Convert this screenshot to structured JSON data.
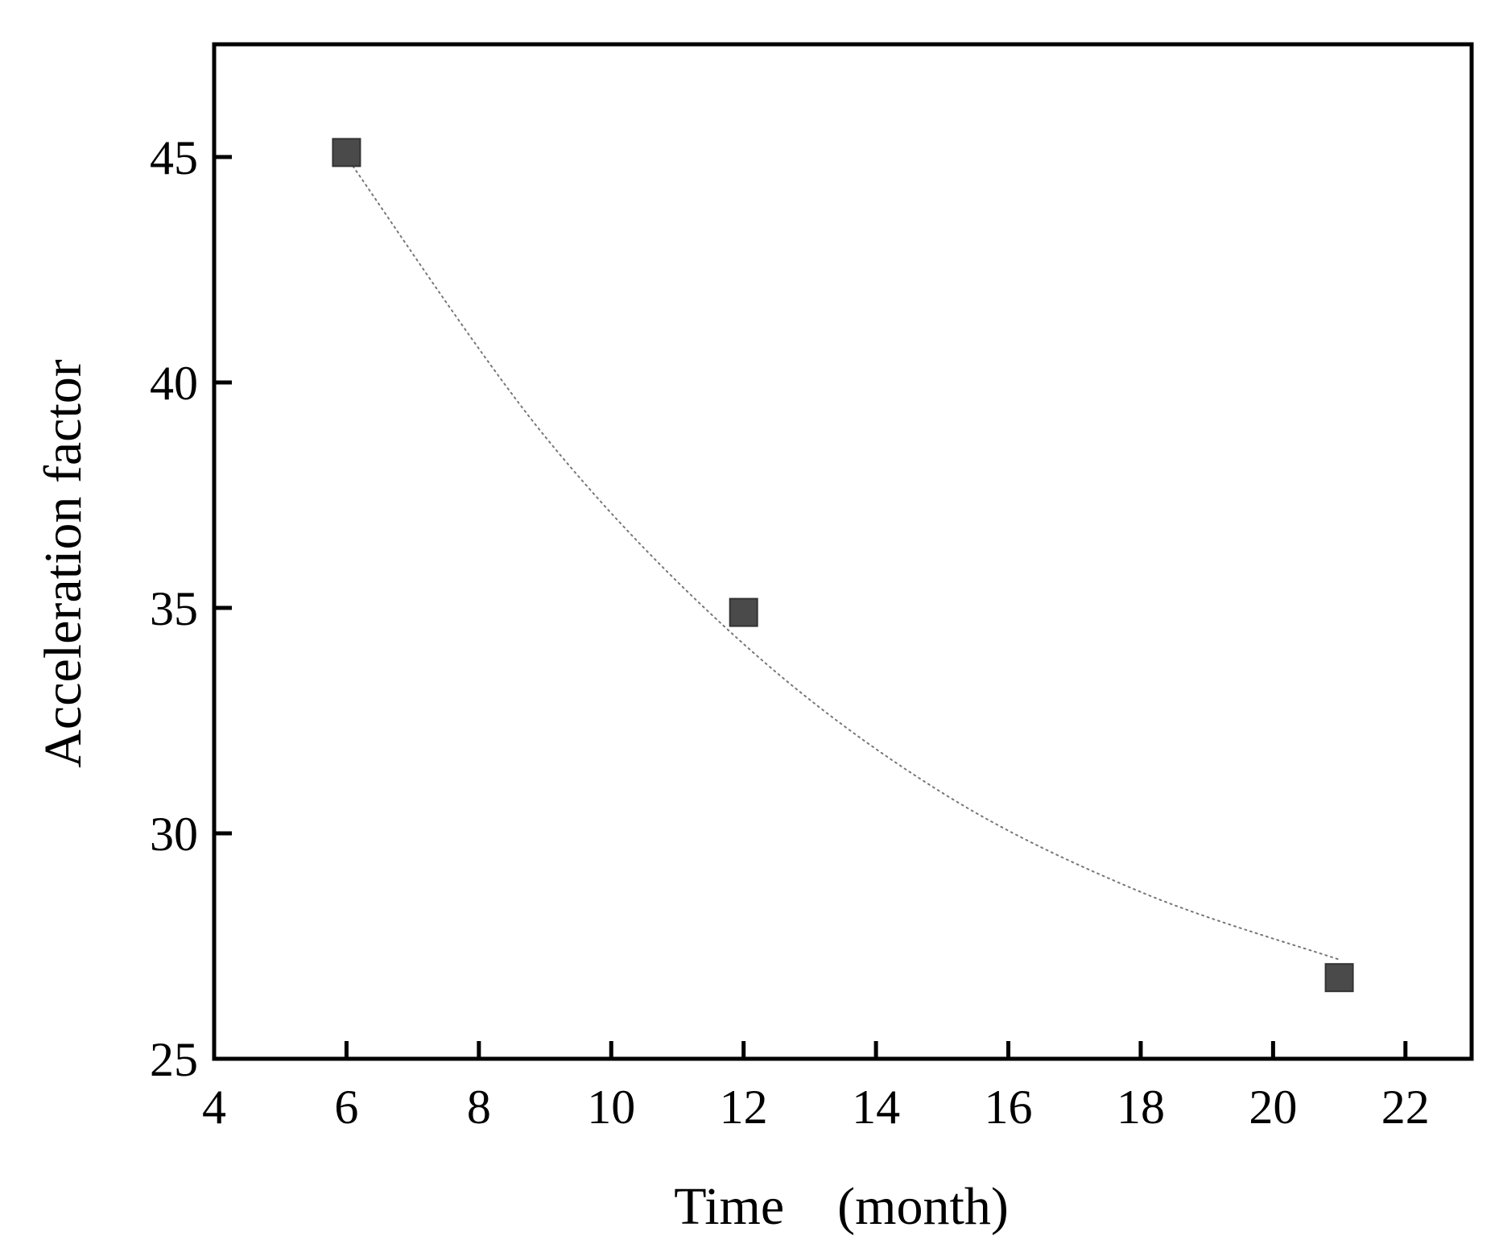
{
  "chart_data": {
    "type": "scatter",
    "title": "",
    "xlabel": "Time　(month)",
    "ylabel": "Acceleration factor",
    "xlim": [
      4,
      23
    ],
    "ylim": [
      25,
      47.5
    ],
    "xticks": [
      4,
      6,
      8,
      10,
      12,
      14,
      16,
      18,
      20,
      22
    ],
    "yticks": [
      25,
      30,
      35,
      40,
      45
    ],
    "grid": false,
    "legend": "none",
    "series": [
      {
        "marker": "square",
        "color": "#4a4a4a",
        "x": [
          6,
          12,
          21
        ],
        "y": [
          45.1,
          34.9,
          26.8
        ]
      }
    ],
    "fit_curve": {
      "style": "dotted",
      "color": "#777777",
      "x": [
        6,
        9,
        12,
        15,
        18,
        21
      ],
      "y": [
        45.0,
        38.8,
        34.2,
        30.9,
        28.7,
        27.2
      ]
    }
  }
}
